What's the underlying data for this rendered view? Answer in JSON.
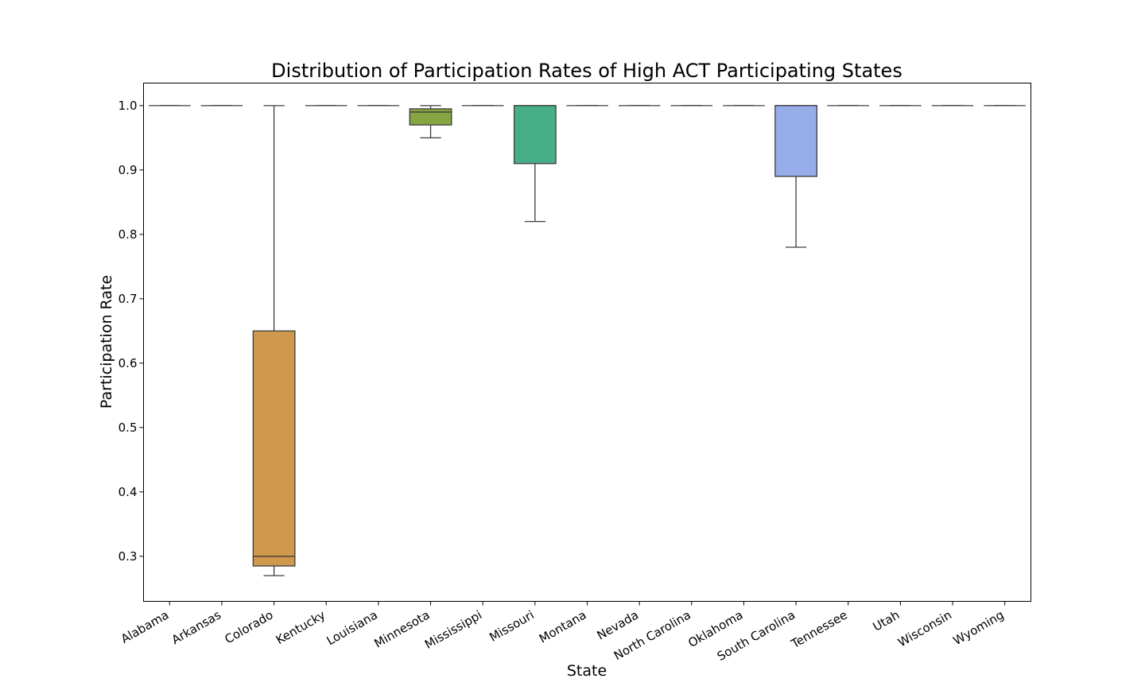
{
  "chart_data": {
    "type": "box",
    "title": "Distribution of Participation Rates of High ACT Participating States",
    "xlabel": "State",
    "ylabel": "Participation Rate",
    "ylim": [
      0.23,
      1.035
    ],
    "yticks": [
      0.3,
      0.4,
      0.5,
      0.6,
      0.7,
      0.8,
      0.9,
      1.0
    ],
    "ytick_labels": [
      "0.3",
      "0.4",
      "0.5",
      "0.6",
      "0.7",
      "0.8",
      "0.9",
      "1.0"
    ],
    "grid": false,
    "categories": [
      "Alabama",
      "Arkansas",
      "Colorado",
      "Kentucky",
      "Louisiana",
      "Minnesota",
      "Mississippi",
      "Missouri",
      "Montana",
      "Nevada",
      "North Carolina",
      "Oklahoma",
      "South Carolina",
      "Tennessee",
      "Utah",
      "Wisconsin",
      "Wyoming"
    ],
    "boxes": [
      {
        "whislo": 1.0,
        "q1": 1.0,
        "med": 1.0,
        "q3": 1.0,
        "whishi": 1.0,
        "color": "#3274a1"
      },
      {
        "whislo": 1.0,
        "q1": 1.0,
        "med": 1.0,
        "q3": 1.0,
        "whishi": 1.0,
        "color": "#e1812c"
      },
      {
        "whislo": 0.27,
        "q1": 0.285,
        "med": 0.3,
        "q3": 0.65,
        "whishi": 1.0,
        "color": "#cf984c"
      },
      {
        "whislo": 1.0,
        "q1": 1.0,
        "med": 1.0,
        "q3": 1.0,
        "whishi": 1.0,
        "color": "#c03d3e"
      },
      {
        "whislo": 1.0,
        "q1": 1.0,
        "med": 1.0,
        "q3": 1.0,
        "whishi": 1.0,
        "color": "#9372b2"
      },
      {
        "whislo": 0.95,
        "q1": 0.97,
        "med": 0.99,
        "q3": 0.995,
        "whishi": 1.0,
        "color": "#84a542"
      },
      {
        "whislo": 1.0,
        "q1": 1.0,
        "med": 1.0,
        "q3": 1.0,
        "whishi": 1.0,
        "color": "#d684bd"
      },
      {
        "whislo": 0.82,
        "q1": 0.91,
        "med": 1.0,
        "q3": 1.0,
        "whishi": 1.0,
        "color": "#48ae87"
      },
      {
        "whislo": 1.0,
        "q1": 1.0,
        "med": 1.0,
        "q3": 1.0,
        "whishi": 1.0,
        "color": "#a9aa35"
      },
      {
        "whislo": 1.0,
        "q1": 1.0,
        "med": 1.0,
        "q3": 1.0,
        "whishi": 1.0,
        "color": "#3a923a"
      },
      {
        "whislo": 1.0,
        "q1": 1.0,
        "med": 1.0,
        "q3": 1.0,
        "whishi": 1.0,
        "color": "#8c613c"
      },
      {
        "whislo": 1.0,
        "q1": 1.0,
        "med": 1.0,
        "q3": 1.0,
        "whishi": 1.0,
        "color": "#808080"
      },
      {
        "whislo": 0.78,
        "q1": 0.89,
        "med": 1.0,
        "q3": 1.0,
        "whishi": 1.0,
        "color": "#97adea"
      },
      {
        "whislo": 1.0,
        "q1": 1.0,
        "med": 1.0,
        "q3": 1.0,
        "whishi": 1.0,
        "color": "#3274a1"
      },
      {
        "whislo": 1.0,
        "q1": 1.0,
        "med": 1.0,
        "q3": 1.0,
        "whishi": 1.0,
        "color": "#e1812c"
      },
      {
        "whislo": 1.0,
        "q1": 1.0,
        "med": 1.0,
        "q3": 1.0,
        "whishi": 1.0,
        "color": "#3a923a"
      },
      {
        "whislo": 1.0,
        "q1": 1.0,
        "med": 1.0,
        "q3": 1.0,
        "whishi": 1.0,
        "color": "#c03d3e"
      }
    ]
  }
}
